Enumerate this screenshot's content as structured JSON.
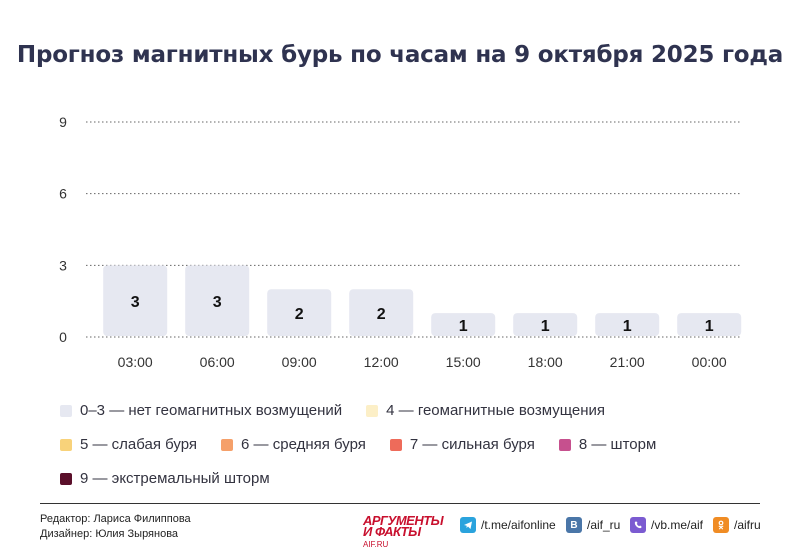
{
  "title": "Прогноз магнитных бурь по часам на 9 октября 2025 года",
  "chart_data": {
    "type": "bar",
    "categories": [
      "03:00",
      "06:00",
      "09:00",
      "12:00",
      "15:00",
      "18:00",
      "21:00",
      "00:00"
    ],
    "values": [
      3,
      3,
      2,
      2,
      1,
      1,
      1,
      1
    ],
    "yticks": [
      0,
      3,
      6,
      9
    ],
    "ylim": [
      0,
      9
    ],
    "grid": true,
    "bar_color": "#e6e8f1",
    "data_labels": [
      "3",
      "3",
      "2",
      "2",
      "1",
      "1",
      "1",
      "1"
    ]
  },
  "legend": [
    {
      "label": "0–3 — нет геомагнитных возмущений",
      "color": "#e6e8f1"
    },
    {
      "label": "4 — геомагнитные возмущения",
      "color": "#fcefc7"
    },
    {
      "label": "5 — слабая буря",
      "color": "#f8d27a"
    },
    {
      "label": "6 — средняя буря",
      "color": "#f5a06a"
    },
    {
      "label": "7 — сильная буря",
      "color": "#ee6b5a"
    },
    {
      "label": "8 — шторм",
      "color": "#c6508e"
    },
    {
      "label": "9 — экстремальный шторм",
      "color": "#5a0f2a"
    }
  ],
  "footer": {
    "editor": "Редактор: Лариса Филиппова",
    "designer": "Дизайнер: Юлия Зырянова",
    "brand_line1": "АРГУМЕНТЫ",
    "brand_line2": "И ФАКТЫ",
    "brand_site": "AIF.RU",
    "social": [
      {
        "icon": "telegram-icon",
        "text": "/t.me/aifonline",
        "color": "#2aa3dd"
      },
      {
        "icon": "vk-icon",
        "text": "/aif_ru",
        "color": "#4a76a8"
      },
      {
        "icon": "viber-icon",
        "text": "/vb.me/aif",
        "color": "#7b5bd1"
      },
      {
        "icon": "odnoklassniki-icon",
        "text": "/aifru",
        "color": "#f08c24"
      }
    ]
  }
}
